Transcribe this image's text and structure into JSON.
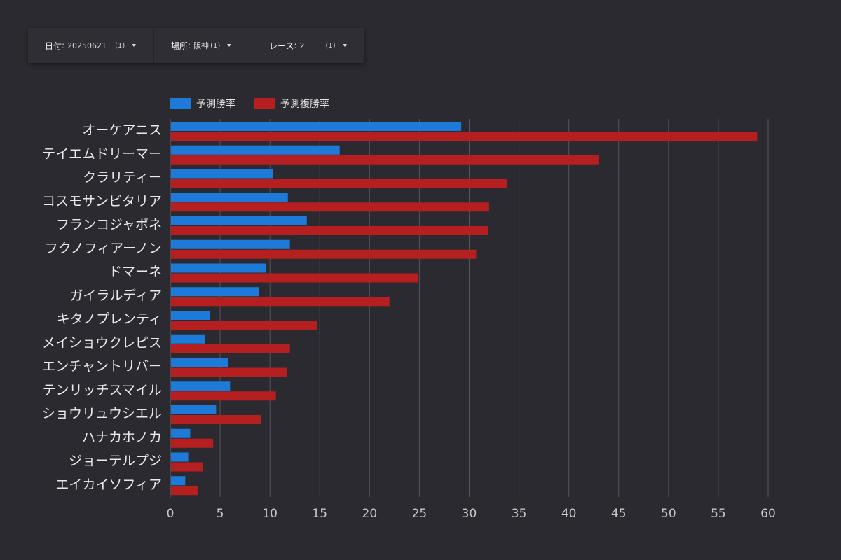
{
  "filters": [
    {
      "label": "日付",
      "value": "20250621",
      "count": "(1)"
    },
    {
      "label": "場所",
      "value": "阪神",
      "count": "(1)"
    },
    {
      "label": "レース",
      "value": "2",
      "count": "(1)"
    }
  ],
  "colors": {
    "background": "#2b2a30",
    "series_win": "#1e7ad8",
    "series_place": "#b51f1f",
    "gridline": "#55545a",
    "text": "#e6e6e6"
  },
  "chart_data": {
    "type": "bar",
    "orientation": "horizontal",
    "categories": [
      "オーケアニス",
      "テイエムドリーマー",
      "クラリティー",
      "コスモサンビタリア",
      "フランコジャポネ",
      "フクノフィアーノン",
      "ドマーネ",
      "ガイラルディア",
      "キタノプレンティ",
      "メイショウクレピス",
      "エンチャントリバー",
      "テンリッチスマイル",
      "ショウリュウシエル",
      "ハナカホノカ",
      "ジョーテルプジ",
      "エイカイソフィア"
    ],
    "series": [
      {
        "name": "予測勝率",
        "values": [
          29.2,
          17.0,
          10.3,
          11.8,
          13.7,
          12.0,
          9.6,
          8.9,
          4.0,
          3.5,
          5.8,
          6.0,
          4.6,
          2.0,
          1.8,
          1.5
        ]
      },
      {
        "name": "予測複勝率",
        "values": [
          58.9,
          43.0,
          33.8,
          32.0,
          31.9,
          30.7,
          24.9,
          22.0,
          14.7,
          12.0,
          11.7,
          10.6,
          9.1,
          4.3,
          3.3,
          2.8
        ]
      }
    ],
    "xlim": [
      0,
      60
    ],
    "xticks": [
      0,
      5,
      10,
      15,
      20,
      25,
      30,
      35,
      40,
      45,
      50,
      55,
      60
    ],
    "grid": true,
    "legend_position": "top-left"
  }
}
